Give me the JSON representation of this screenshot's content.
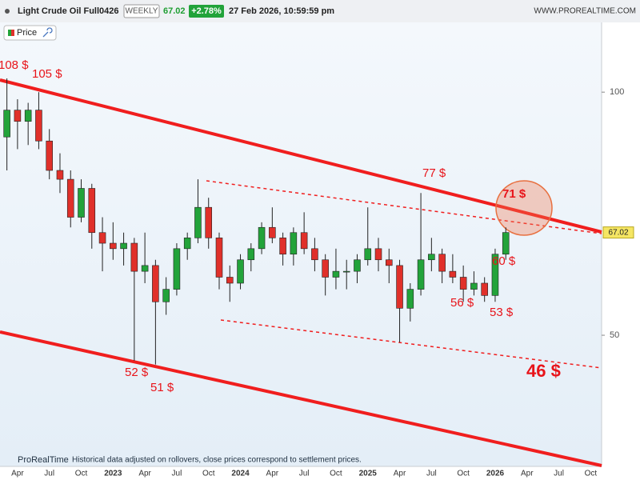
{
  "header": {
    "title": "Light Crude Oil Full0426",
    "timeframe": "WEEKLY",
    "change": "+2.78%",
    "datetime": "27 Feb 2026, 10:59:59 pm",
    "site": "WWW.PROREALTIME.COM"
  },
  "legend": "Price",
  "footer": {
    "brand": "ProRealTime",
    "note": "Historical data adjusted on rollovers, close prices correspond to settlement prices."
  },
  "chart_data": {
    "type": "candlestick",
    "categories": [
      null,
      "Apr",
      null,
      null,
      "Jul",
      null,
      null,
      "Oct",
      null,
      null,
      "2023",
      null,
      null,
      "Apr",
      null,
      null,
      "Jul",
      null,
      null,
      "Oct",
      null,
      null,
      "2024",
      null,
      null,
      "Apr",
      null,
      null,
      "Jul",
      null,
      null,
      "Oct",
      null,
      null,
      "2025",
      null,
      null,
      "Apr",
      null,
      null,
      "Jul",
      null,
      null,
      "Oct",
      null,
      null,
      "2026",
      null,
      null,
      "Apr",
      null,
      null,
      "Jul",
      null,
      null,
      "Oct"
    ],
    "open": [
      88,
      95,
      92,
      95,
      87,
      80,
      78,
      70,
      76,
      67,
      65,
      64,
      65,
      60,
      61,
      55,
      57,
      64,
      66,
      72,
      66,
      59,
      58,
      62,
      64,
      68,
      66,
      63,
      67,
      64,
      62,
      59,
      60,
      60,
      62,
      64,
      62,
      61,
      54,
      57,
      62,
      63,
      60,
      59,
      57,
      58,
      56,
      63,
      null,
      null,
      null,
      null,
      null,
      null,
      null,
      null
    ],
    "high": [
      104,
      98,
      97,
      100,
      90,
      84,
      80,
      78,
      77,
      70,
      69,
      67,
      66,
      67,
      62,
      59,
      65,
      67,
      78,
      74,
      67,
      61,
      63,
      65,
      69,
      72,
      67,
      68,
      71,
      66,
      63,
      64,
      62,
      63,
      72,
      66,
      64,
      62,
      58,
      75,
      66,
      64,
      63,
      61,
      60,
      59,
      64,
      68,
      null,
      null,
      null,
      null,
      null,
      null,
      null,
      null
    ],
    "low": [
      80,
      85,
      86,
      85,
      78,
      75,
      68,
      69,
      64,
      60,
      62,
      61,
      46.5,
      58,
      46,
      53,
      56,
      62,
      65,
      64,
      57,
      55,
      57,
      60,
      63,
      65,
      61,
      61,
      63,
      60,
      56,
      57,
      57,
      58,
      61,
      60,
      58,
      49,
      52,
      56,
      60,
      58,
      58,
      55,
      56,
      55,
      55,
      62,
      null,
      null,
      null,
      null,
      null,
      null,
      null,
      null
    ],
    "close": [
      95,
      92,
      95,
      87,
      80,
      78,
      70,
      76,
      67,
      65,
      64,
      65,
      60,
      61,
      55,
      57,
      64,
      66,
      72,
      66,
      59,
      58,
      62,
      64,
      68,
      66,
      63,
      67,
      64,
      62,
      59,
      60,
      60,
      62,
      64,
      62,
      61,
      54,
      57,
      62,
      63,
      60,
      59,
      57,
      58,
      56,
      63,
      67.02,
      null,
      null,
      null,
      null,
      null,
      null,
      null,
      null
    ],
    "ylim": [
      34.4,
      122
    ],
    "yticks": [
      50,
      100
    ],
    "log_scale": true,
    "up_color": "#22a33a",
    "down_color": "#e0302a",
    "annotations": [
      "108 $",
      "105 $",
      "77 $",
      "71 $",
      "60 $",
      "56 $",
      "53 $",
      "52 $",
      "51 $",
      "46 $"
    ]
  }
}
